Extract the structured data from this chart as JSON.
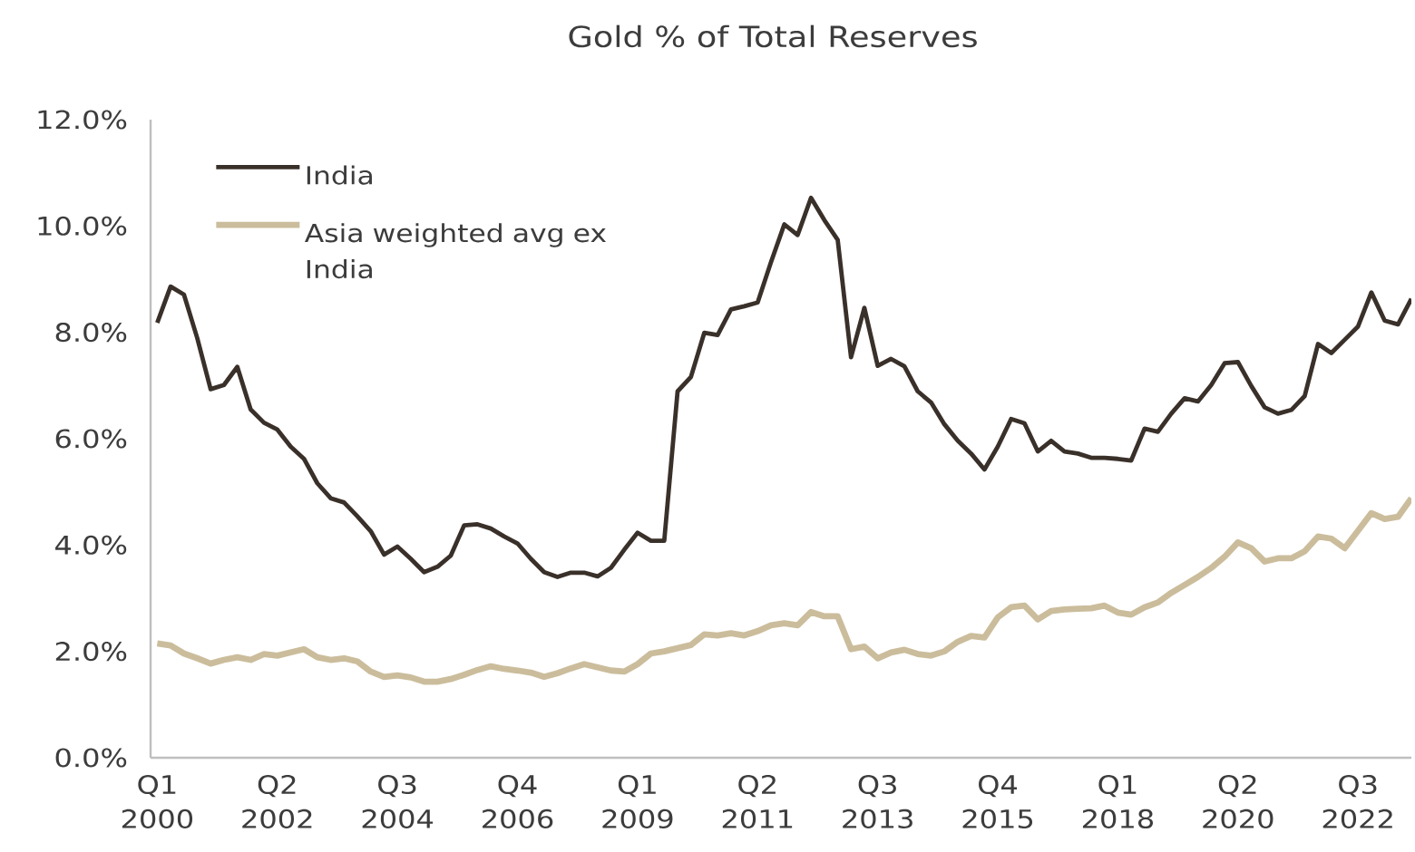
{
  "chart_data": {
    "type": "line",
    "title": "Gold % of Total Reserves",
    "categories": [
      "Q1 2000",
      null,
      null,
      null,
      null,
      null,
      null,
      null,
      null,
      "Q2 2002",
      null,
      null,
      null,
      null,
      null,
      null,
      null,
      null,
      "Q3 2004",
      null,
      null,
      null,
      null,
      null,
      null,
      null,
      null,
      "Q4 2006",
      null,
      null,
      null,
      null,
      null,
      null,
      null,
      null,
      "Q1 2009",
      null,
      null,
      null,
      null,
      null,
      null,
      null,
      null,
      "Q2 2011",
      null,
      null,
      null,
      null,
      null,
      null,
      null,
      null,
      "Q3 2013",
      null,
      null,
      null,
      null,
      null,
      null,
      null,
      null,
      "Q4 2015",
      null,
      null,
      null,
      null,
      null,
      null,
      null,
      null,
      "Q1 2018",
      null,
      null,
      null,
      null,
      null,
      null,
      null,
      null,
      "Q2 2020",
      null,
      null,
      null,
      null,
      null,
      null,
      null,
      null,
      "Q3 2022",
      null,
      null,
      null,
      null
    ],
    "series": [
      {
        "name": "India",
        "color": "#3a302a",
        "values": [
          8.18,
          8.86,
          8.71,
          7.89,
          6.93,
          7.01,
          7.35,
          6.55,
          6.3,
          6.17,
          5.85,
          5.62,
          5.16,
          4.88,
          4.8,
          4.54,
          4.26,
          3.82,
          3.97,
          3.74,
          3.49,
          3.59,
          3.8,
          4.37,
          4.39,
          4.31,
          4.16,
          4.03,
          3.74,
          3.49,
          3.4,
          3.48,
          3.48,
          3.41,
          3.57,
          3.91,
          4.23,
          4.08,
          4.08,
          6.89,
          7.16,
          7.99,
          7.95,
          8.43,
          8.49,
          8.56,
          9.32,
          10.03,
          9.83,
          10.53,
          10.11,
          9.74,
          7.53,
          8.46,
          7.37,
          7.5,
          7.36,
          6.89,
          6.68,
          6.27,
          5.96,
          5.72,
          5.42,
          5.85,
          6.37,
          6.29,
          5.76,
          5.96,
          5.76,
          5.72,
          5.64,
          5.64,
          5.62,
          5.59,
          6.19,
          6.13,
          6.47,
          6.76,
          6.7,
          7.01,
          7.42,
          7.44,
          6.99,
          6.59,
          6.47,
          6.54,
          6.8,
          7.78,
          7.61,
          7.86,
          8.11,
          8.75,
          8.22,
          8.15,
          8.63
        ]
      },
      {
        "name": "Asia weighted avg ex India",
        "color": "#cbbd9c",
        "values": [
          2.15,
          2.11,
          1.96,
          1.87,
          1.77,
          1.84,
          1.89,
          1.84,
          1.95,
          1.92,
          1.98,
          2.04,
          1.89,
          1.84,
          1.87,
          1.81,
          1.62,
          1.52,
          1.55,
          1.51,
          1.43,
          1.43,
          1.48,
          1.56,
          1.65,
          1.72,
          1.67,
          1.64,
          1.6,
          1.52,
          1.59,
          1.68,
          1.76,
          1.7,
          1.64,
          1.62,
          1.76,
          1.96,
          2.0,
          2.06,
          2.12,
          2.32,
          2.3,
          2.34,
          2.3,
          2.38,
          2.49,
          2.53,
          2.49,
          2.74,
          2.66,
          2.66,
          2.04,
          2.09,
          1.87,
          1.98,
          2.03,
          1.95,
          1.92,
          2.0,
          2.18,
          2.29,
          2.26,
          2.64,
          2.83,
          2.86,
          2.6,
          2.76,
          2.79,
          2.8,
          2.81,
          2.86,
          2.73,
          2.69,
          2.83,
          2.92,
          3.1,
          3.25,
          3.4,
          3.57,
          3.78,
          4.05,
          3.94,
          3.69,
          3.75,
          3.75,
          3.88,
          4.16,
          4.12,
          3.94,
          4.27,
          4.6,
          4.49,
          4.53,
          4.88
        ]
      }
    ],
    "ylim": [
      0,
      12
    ],
    "yticks": [
      {
        "value": 0,
        "label": "0.0%"
      },
      {
        "value": 2,
        "label": "2.0%"
      },
      {
        "value": 4,
        "label": "4.0%"
      },
      {
        "value": 6,
        "label": "6.0%"
      },
      {
        "value": 8,
        "label": "8.0%"
      },
      {
        "value": 10,
        "label": "10.0%"
      },
      {
        "value": 12,
        "label": "12.0%"
      }
    ],
    "legend": "top left"
  }
}
